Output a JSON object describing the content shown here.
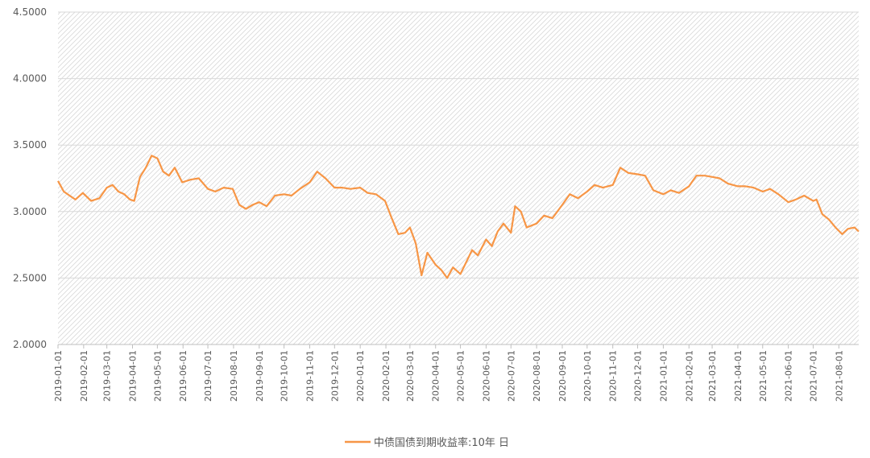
{
  "chart_data": {
    "type": "line",
    "title": "",
    "xlabel": "",
    "ylabel": "",
    "ylim": [
      2.0,
      4.5
    ],
    "yticks": [
      "2.0000",
      "2.5000",
      "3.0000",
      "3.5000",
      "4.0000",
      "4.5000"
    ],
    "xticks": [
      "2019-01-01",
      "2019-02-01",
      "2019-03-01",
      "2019-04-01",
      "2019-05-01",
      "2019-06-01",
      "2019-07-01",
      "2019-08-01",
      "2019-09-01",
      "2019-10-01",
      "2019-11-01",
      "2019-12-01",
      "2020-01-01",
      "2020-02-01",
      "2020-03-01",
      "2020-04-01",
      "2020-05-01",
      "2020-06-01",
      "2020-07-01",
      "2020-08-01",
      "2020-09-01",
      "2020-10-01",
      "2020-11-01",
      "2020-12-01",
      "2021-01-01",
      "2021-02-01",
      "2021-03-01",
      "2021-04-01",
      "2021-05-01",
      "2021-06-01",
      "2021-07-01",
      "2021-08-01"
    ],
    "xrange": [
      "2019-01-01",
      "2021-08-25"
    ],
    "grid": true,
    "legend_position": "bottom",
    "line_color": "#F79646",
    "series": [
      {
        "name": "中债国债到期收益率:10年 日",
        "x": [
          "2019-01-01",
          "2019-01-08",
          "2019-01-15",
          "2019-01-22",
          "2019-01-31",
          "2019-02-10",
          "2019-02-20",
          "2019-03-01",
          "2019-03-08",
          "2019-03-15",
          "2019-03-22",
          "2019-03-29",
          "2019-04-03",
          "2019-04-10",
          "2019-04-17",
          "2019-04-24",
          "2019-05-01",
          "2019-05-08",
          "2019-05-15",
          "2019-05-22",
          "2019-05-31",
          "2019-06-10",
          "2019-06-20",
          "2019-07-01",
          "2019-07-10",
          "2019-07-20",
          "2019-07-31",
          "2019-08-08",
          "2019-08-16",
          "2019-08-24",
          "2019-09-01",
          "2019-09-10",
          "2019-09-20",
          "2019-10-01",
          "2019-10-10",
          "2019-10-20",
          "2019-11-01",
          "2019-11-10",
          "2019-11-20",
          "2019-12-01",
          "2019-12-10",
          "2019-12-20",
          "2020-01-01",
          "2020-01-10",
          "2020-01-20",
          "2020-01-31",
          "2020-02-08",
          "2020-02-16",
          "2020-02-24",
          "2020-03-01",
          "2020-03-08",
          "2020-03-15",
          "2020-03-22",
          "2020-04-01",
          "2020-04-08",
          "2020-04-15",
          "2020-04-22",
          "2020-05-01",
          "2020-05-08",
          "2020-05-15",
          "2020-05-22",
          "2020-06-01",
          "2020-06-08",
          "2020-06-15",
          "2020-06-22",
          "2020-07-01",
          "2020-07-06",
          "2020-07-13",
          "2020-07-20",
          "2020-08-01",
          "2020-08-10",
          "2020-08-20",
          "2020-09-01",
          "2020-09-10",
          "2020-09-20",
          "2020-10-01",
          "2020-10-10",
          "2020-10-20",
          "2020-11-01",
          "2020-11-10",
          "2020-11-20",
          "2020-12-01",
          "2020-12-10",
          "2020-12-20",
          "2021-01-01",
          "2021-01-10",
          "2021-01-20",
          "2021-02-01",
          "2021-02-10",
          "2021-02-20",
          "2021-03-01",
          "2021-03-10",
          "2021-03-20",
          "2021-04-01",
          "2021-04-10",
          "2021-04-20",
          "2021-05-01",
          "2021-05-10",
          "2021-05-20",
          "2021-06-01",
          "2021-06-10",
          "2021-06-20",
          "2021-07-01",
          "2021-07-05",
          "2021-07-12",
          "2021-07-20",
          "2021-07-28",
          "2021-08-05",
          "2021-08-12",
          "2021-08-20",
          "2021-08-25"
        ],
        "values": [
          3.23,
          3.15,
          3.12,
          3.09,
          3.14,
          3.08,
          3.1,
          3.18,
          3.2,
          3.15,
          3.13,
          3.09,
          3.08,
          3.26,
          3.33,
          3.42,
          3.4,
          3.3,
          3.27,
          3.33,
          3.22,
          3.24,
          3.25,
          3.17,
          3.15,
          3.18,
          3.17,
          3.05,
          3.02,
          3.05,
          3.07,
          3.04,
          3.12,
          3.13,
          3.12,
          3.17,
          3.22,
          3.3,
          3.25,
          3.18,
          3.18,
          3.17,
          3.18,
          3.14,
          3.13,
          3.08,
          2.95,
          2.83,
          2.84,
          2.88,
          2.76,
          2.52,
          2.69,
          2.6,
          2.56,
          2.5,
          2.58,
          2.53,
          2.62,
          2.71,
          2.67,
          2.79,
          2.74,
          2.85,
          2.91,
          2.84,
          3.04,
          3.0,
          2.88,
          2.91,
          2.97,
          2.95,
          3.05,
          3.13,
          3.1,
          3.15,
          3.2,
          3.18,
          3.2,
          3.33,
          3.29,
          3.28,
          3.27,
          3.16,
          3.13,
          3.16,
          3.14,
          3.19,
          3.27,
          3.27,
          3.26,
          3.25,
          3.21,
          3.19,
          3.19,
          3.18,
          3.15,
          3.17,
          3.13,
          3.07,
          3.09,
          3.12,
          3.08,
          3.09,
          2.98,
          2.94,
          2.88,
          2.83,
          2.87,
          2.88,
          2.85
        ]
      }
    ]
  }
}
